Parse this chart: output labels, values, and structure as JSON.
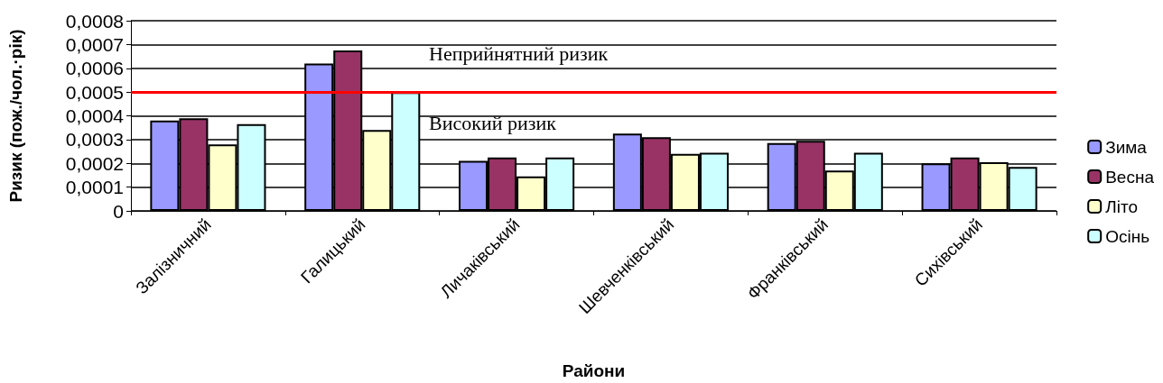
{
  "chart_data": {
    "type": "bar",
    "xlabel": "Райони",
    "ylabel": "Ризик (пож./чол.·рік)",
    "categories": [
      "Залізничний",
      "Галицький",
      "Личаківський",
      "Шевченківський",
      "Франківський",
      "Сихівський"
    ],
    "series": [
      {
        "name": "Зима",
        "color": "#9999ff",
        "values": [
          0.00038,
          0.00062,
          0.00021,
          0.000325,
          0.000285,
          0.0002
        ]
      },
      {
        "name": "Весна",
        "color": "#993366",
        "values": [
          0.00039,
          0.000675,
          0.000225,
          0.00031,
          0.000295,
          0.000225
        ]
      },
      {
        "name": "Літо",
        "color": "#ffffcc",
        "values": [
          0.00028,
          0.00034,
          0.000145,
          0.00024,
          0.00017,
          0.000205
        ]
      },
      {
        "name": "Осінь",
        "color": "#ccffff",
        "values": [
          0.000365,
          0.0005,
          0.000225,
          0.000245,
          0.000245,
          0.000185
        ]
      }
    ],
    "ylim": [
      0,
      0.0008
    ],
    "yticks": [
      0,
      {
        "value": 0.0001,
        "label": "0,0001"
      },
      {
        "value": 0.0002,
        "label": "0,0002"
      },
      {
        "value": 0.0003,
        "label": "0,0003"
      },
      {
        "value": 0.0004,
        "label": "0,0004"
      },
      {
        "value": 0.0005,
        "label": "0,0005"
      },
      {
        "value": 0.0006,
        "label": "0,0006"
      },
      {
        "value": 0.0007,
        "label": "0,0007"
      },
      {
        "value": 0.0008,
        "label": "0,0008"
      }
    ],
    "ref_lines": [
      {
        "axis": "y",
        "value": 0.0005,
        "color": "#ff0000"
      }
    ],
    "annotations": [
      "Неприйнятний ризик",
      "Високий ризик"
    ],
    "grid": "y",
    "legend": "right"
  }
}
